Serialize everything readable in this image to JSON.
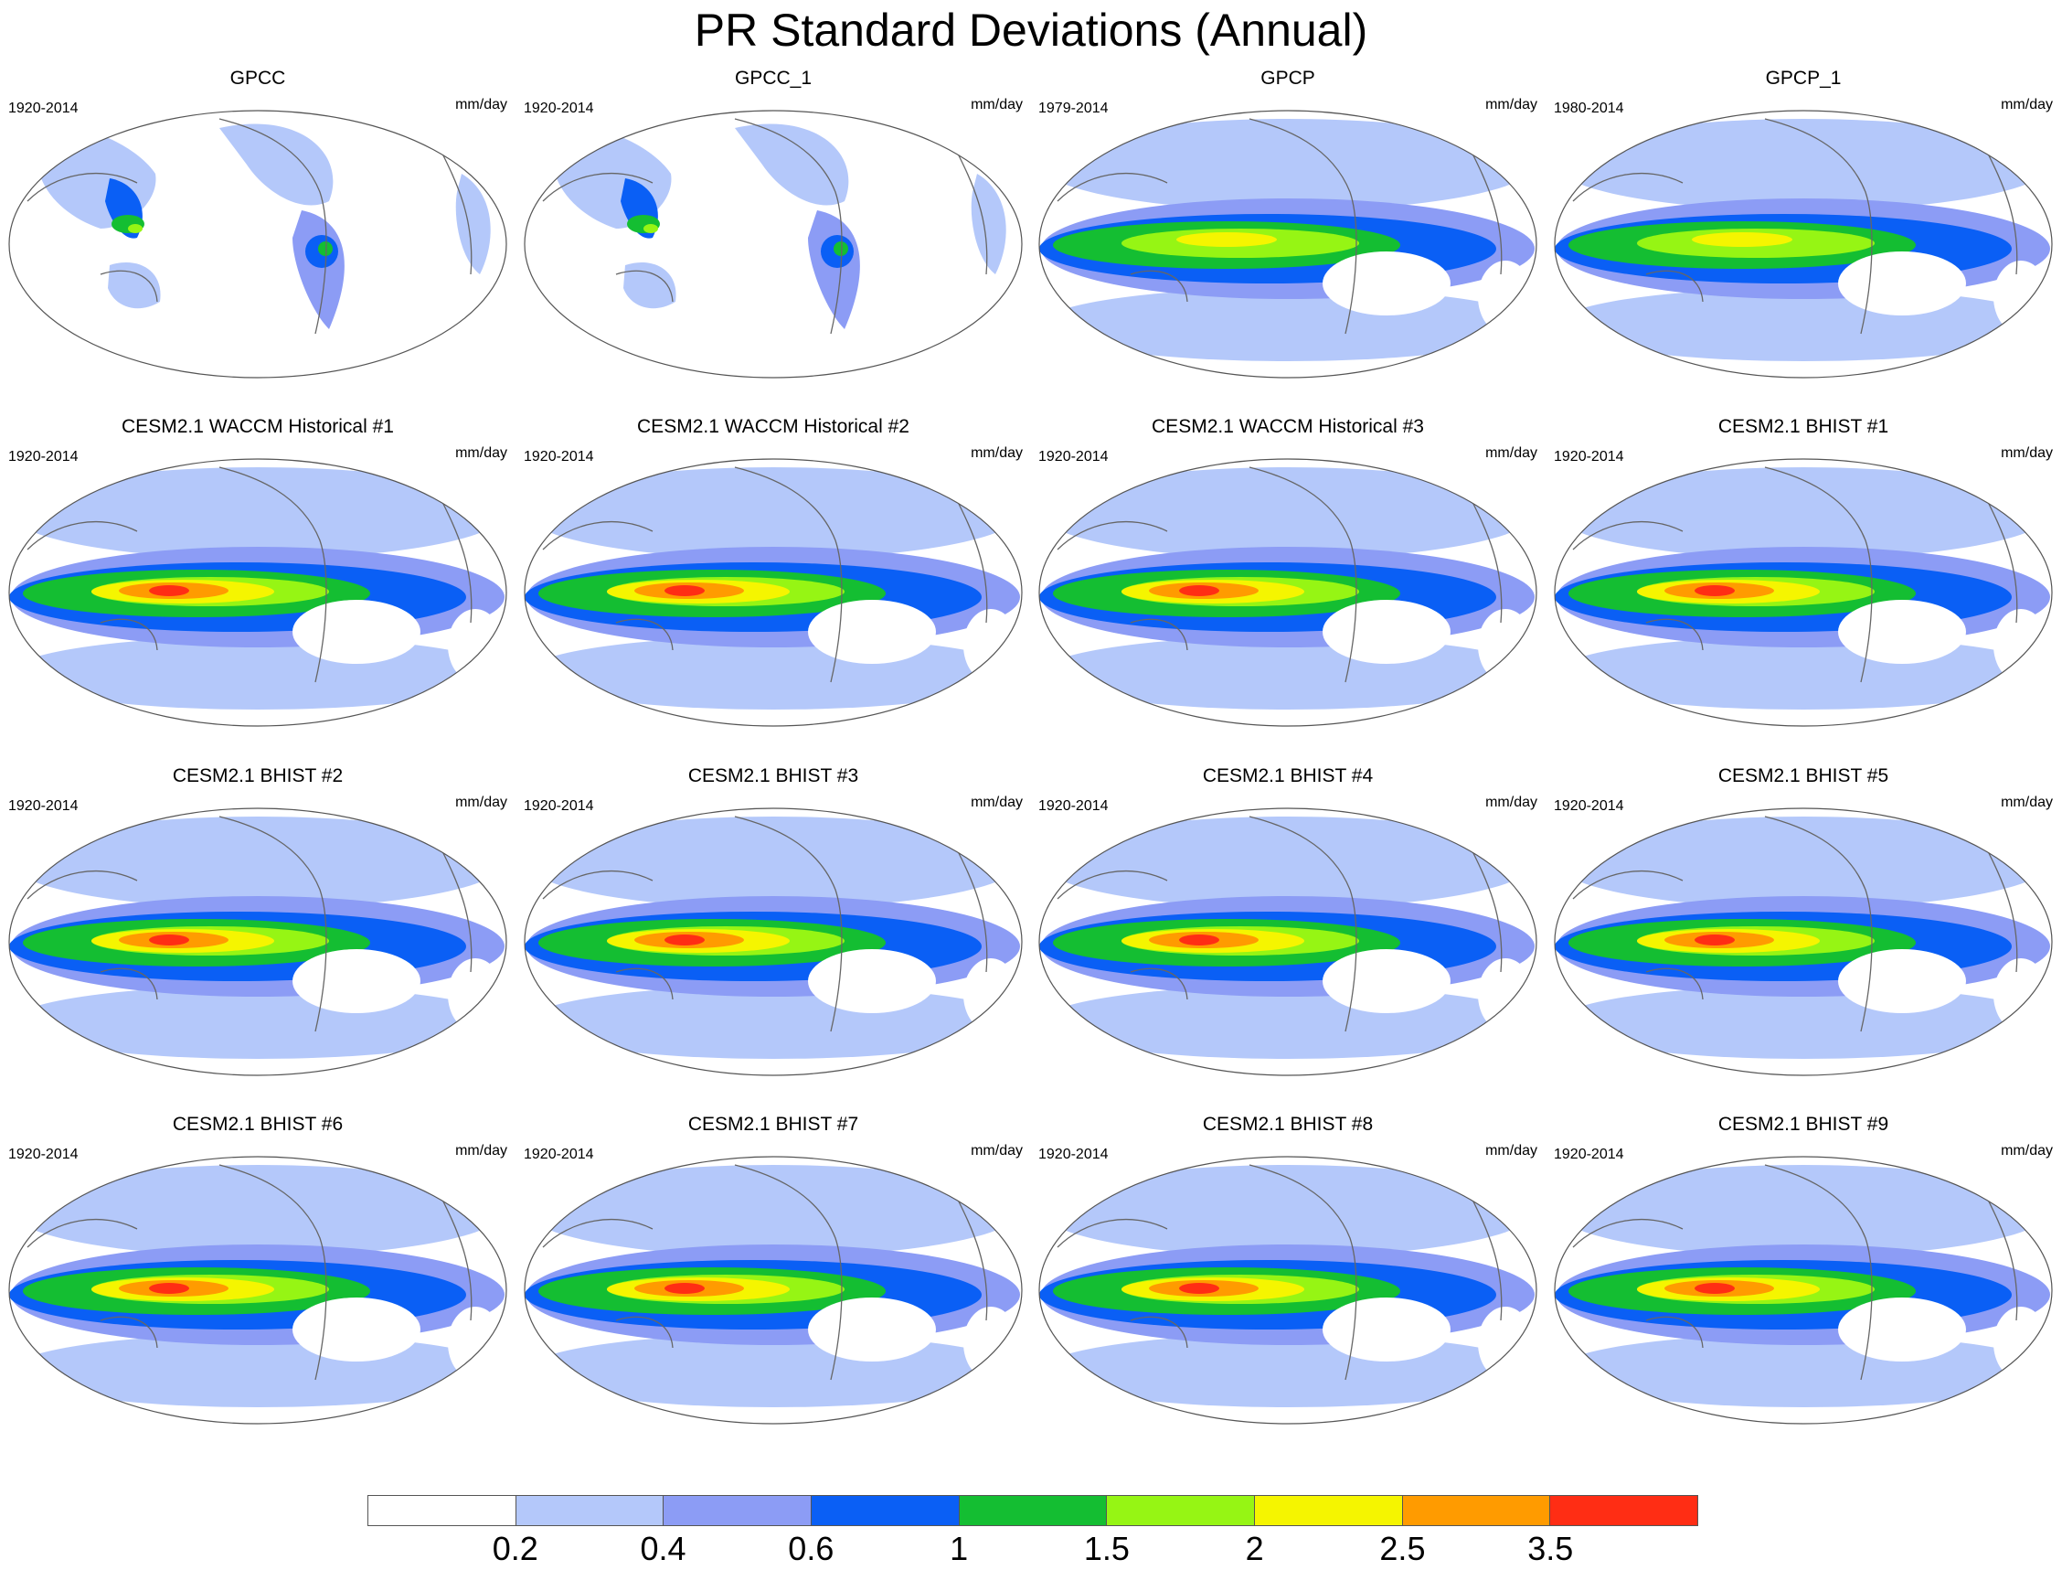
{
  "title": "PR Standard Deviations (Annual)",
  "colorbar": {
    "colors": [
      "#ffffff",
      "#b4c8fa",
      "#8c9cf5",
      "#0a5ff5",
      "#14be32",
      "#96f514",
      "#f5f500",
      "#ff9b00",
      "#ff2d14"
    ],
    "labels": [
      "0.2",
      "0.4",
      "0.6",
      "1",
      "1.5",
      "2",
      "2.5",
      "3.5"
    ]
  },
  "panels": [
    {
      "title": "GPCC",
      "period": "1920-2014",
      "units": "mm/day",
      "kind": "land_obs"
    },
    {
      "title": "GPCC_1",
      "period": "1920-2014",
      "units": "mm/day",
      "kind": "land_obs"
    },
    {
      "title": "GPCP",
      "period": "1979-2014",
      "units": "mm/day",
      "kind": "satellite_obs"
    },
    {
      "title": "GPCP_1",
      "period": "1980-2014",
      "units": "mm/day",
      "kind": "satellite_obs"
    },
    {
      "title": "CESM2.1 WACCM Historical #1",
      "period": "1920-2014",
      "units": "mm/day",
      "kind": "model"
    },
    {
      "title": "CESM2.1 WACCM Historical #2",
      "period": "1920-2014",
      "units": "mm/day",
      "kind": "model"
    },
    {
      "title": "CESM2.1 WACCM Historical #3",
      "period": "1920-2014",
      "units": "mm/day",
      "kind": "model"
    },
    {
      "title": "CESM2.1 BHIST #1",
      "period": "1920-2014",
      "units": "mm/day",
      "kind": "model"
    },
    {
      "title": "CESM2.1 BHIST #2",
      "period": "1920-2014",
      "units": "mm/day",
      "kind": "model"
    },
    {
      "title": "CESM2.1 BHIST #3",
      "period": "1920-2014",
      "units": "mm/day",
      "kind": "model"
    },
    {
      "title": "CESM2.1 BHIST #4",
      "period": "1920-2014",
      "units": "mm/day",
      "kind": "model"
    },
    {
      "title": "CESM2.1 BHIST #5",
      "period": "1920-2014",
      "units": "mm/day",
      "kind": "model"
    },
    {
      "title": "CESM2.1 BHIST #6",
      "period": "1920-2014",
      "units": "mm/day",
      "kind": "model"
    },
    {
      "title": "CESM2.1 BHIST #7",
      "period": "1920-2014",
      "units": "mm/day",
      "kind": "model"
    },
    {
      "title": "CESM2.1 BHIST #8",
      "period": "1920-2014",
      "units": "mm/day",
      "kind": "model"
    },
    {
      "title": "CESM2.1 BHIST #9",
      "period": "1920-2014",
      "units": "mm/day",
      "kind": "model"
    }
  ]
}
